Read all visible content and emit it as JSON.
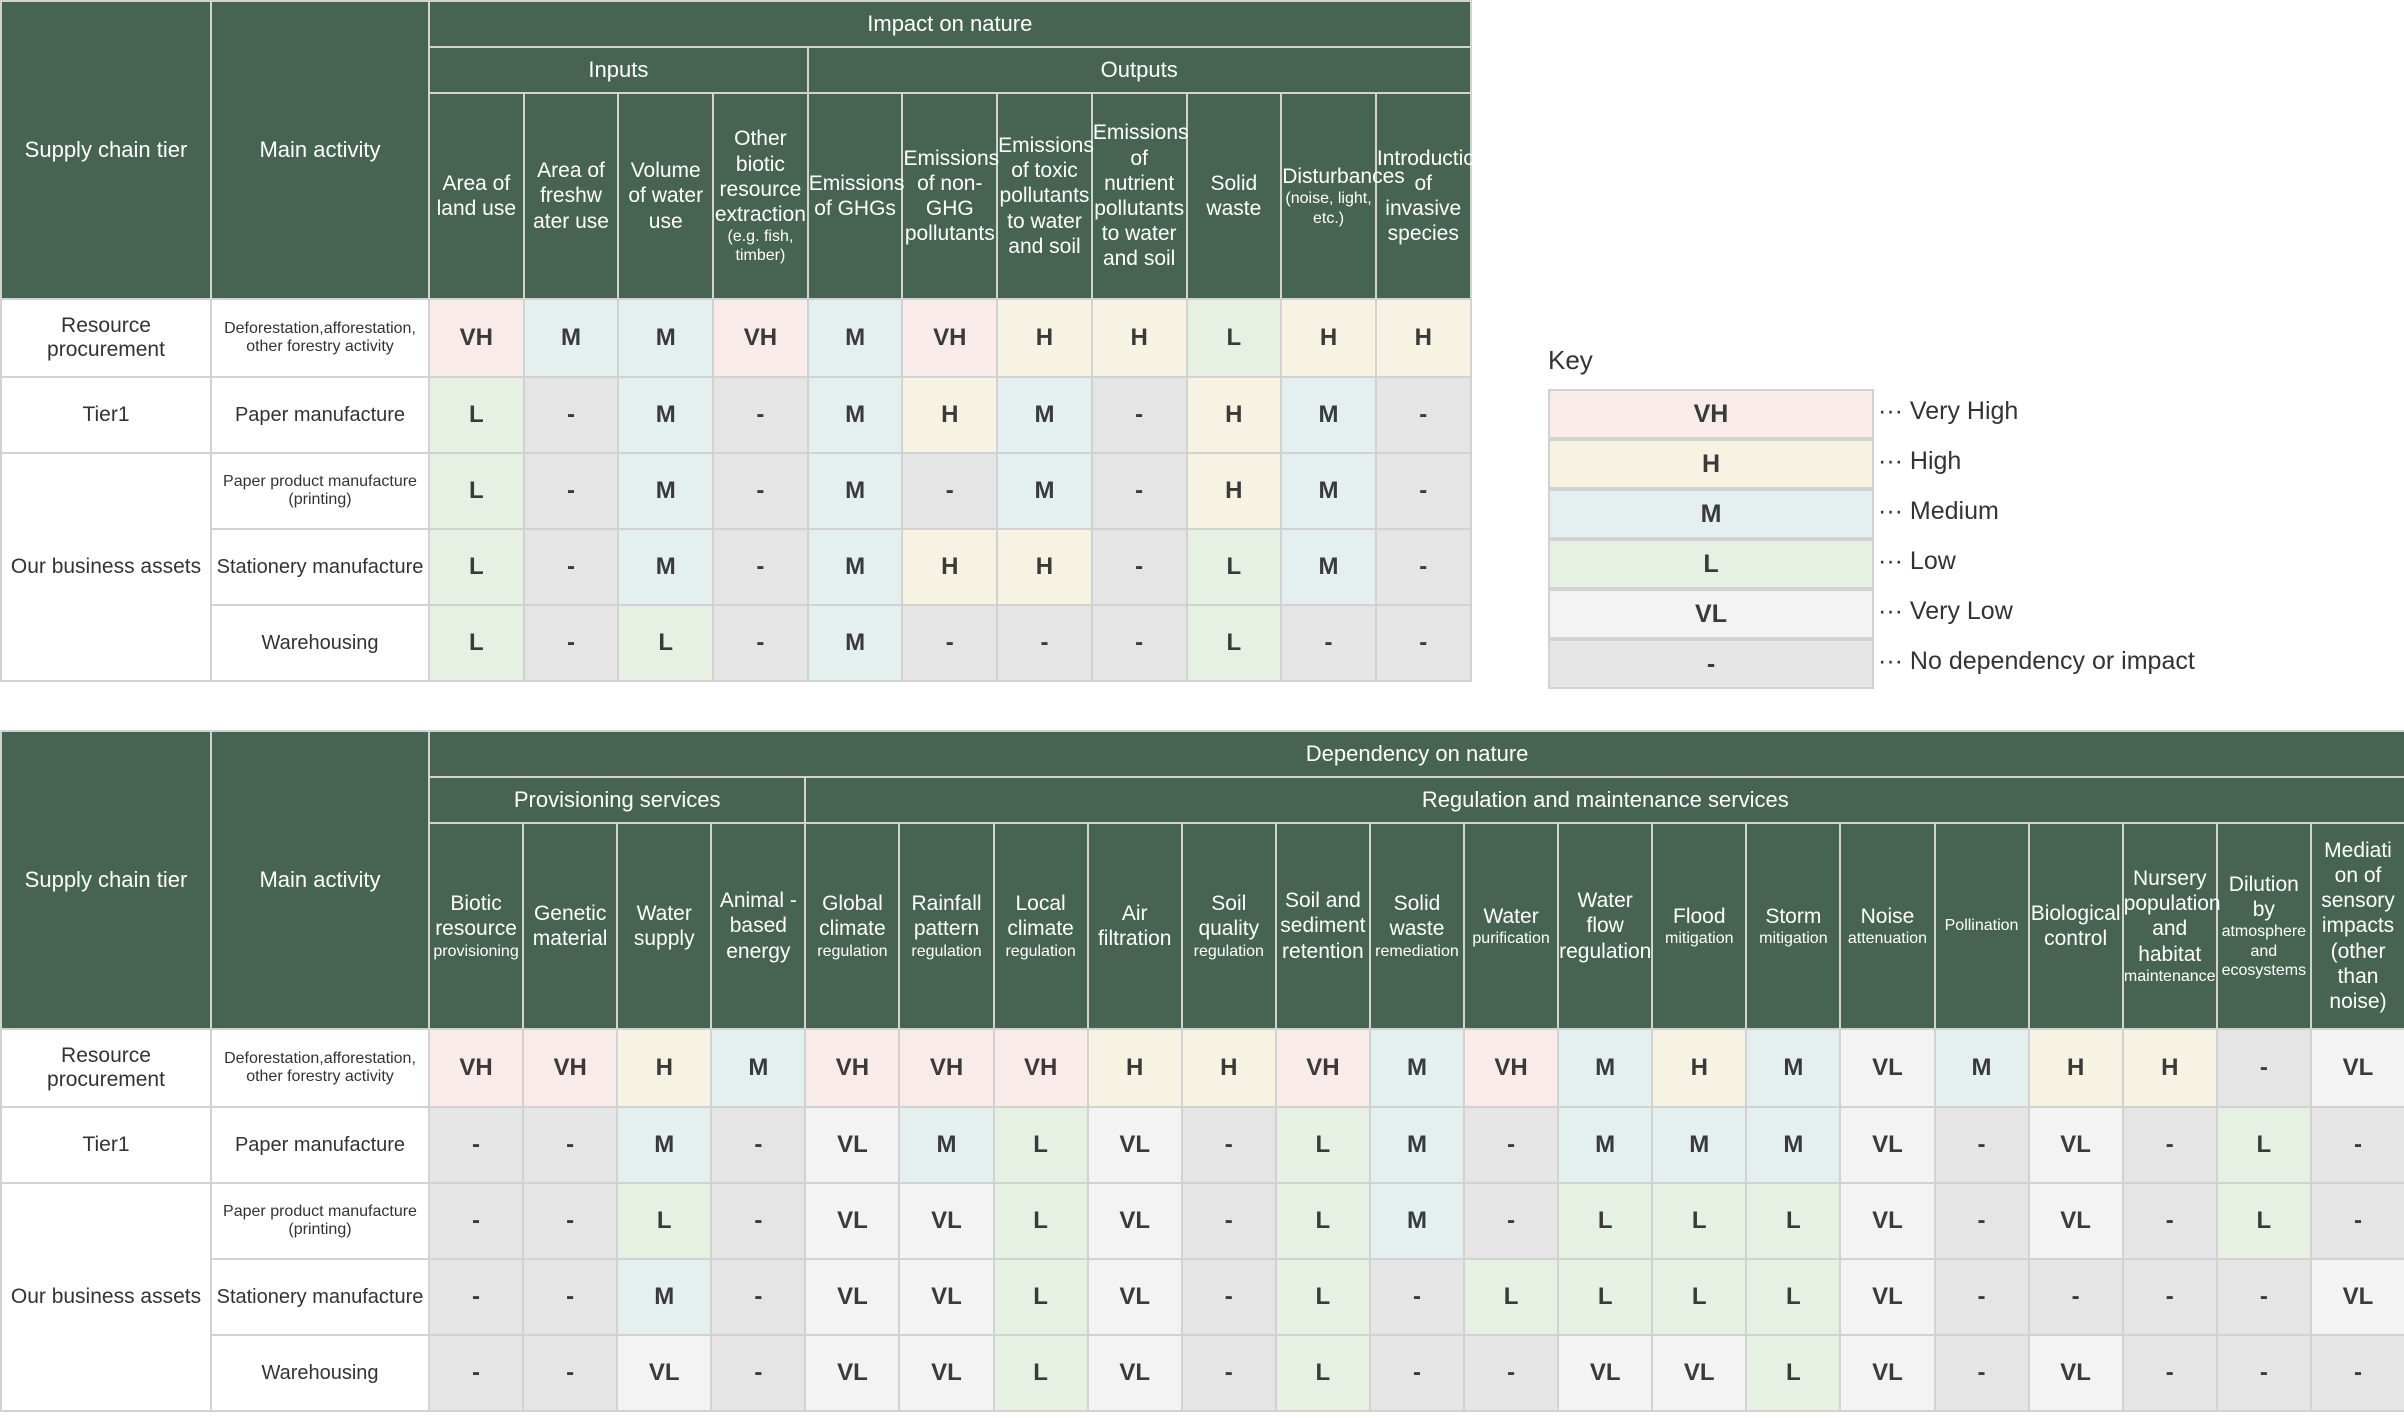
{
  "impact": {
    "tier_header": "Supply chain tier",
    "activity_header": "Main activity",
    "title": "Impact on nature",
    "groups": [
      "Inputs",
      "Outputs"
    ],
    "columns": [
      {
        "main": "Area of land use",
        "sub": ""
      },
      {
        "main": "Area of freshw ater use",
        "sub": ""
      },
      {
        "main": "Volume of water use",
        "sub": ""
      },
      {
        "main": "Other biotic resource extraction",
        "sub": "(e.g. fish, timber)"
      },
      {
        "main": "Emissions of GHGs",
        "sub": ""
      },
      {
        "main": "Emissions of non-GHG pollutants",
        "sub": ""
      },
      {
        "main": "Emissions of toxic pollutants to water and soil",
        "sub": ""
      },
      {
        "main": "Emissions of nutrient pollutants to water and soil",
        "sub": ""
      },
      {
        "main": "Solid waste",
        "sub": ""
      },
      {
        "main": "Disturbances",
        "sub": "(noise, light, etc.)"
      },
      {
        "main": "Introduction of invasive species",
        "sub": ""
      }
    ],
    "rows": [
      {
        "tier": "Resource procurement",
        "activity": "Deforestation,afforestation, other forestry activity",
        "values": [
          "VH",
          "M",
          "M",
          "VH",
          "M",
          "VH",
          "H",
          "H",
          "L",
          "H",
          "H"
        ]
      },
      {
        "tier": "Tier1",
        "activity": "Paper manufacture",
        "values": [
          "L",
          "-",
          "M",
          "-",
          "M",
          "H",
          "M",
          "-",
          "H",
          "M",
          "-"
        ]
      },
      {
        "tier": "Our business assets",
        "activity": "Paper product manufacture (printing)",
        "values": [
          "L",
          "-",
          "M",
          "-",
          "M",
          "-",
          "M",
          "-",
          "H",
          "M",
          "-"
        ]
      },
      {
        "tier": "",
        "activity": "Stationery manufacture",
        "values": [
          "L",
          "-",
          "M",
          "-",
          "M",
          "H",
          "H",
          "-",
          "L",
          "M",
          "-"
        ]
      },
      {
        "tier": "",
        "activity": "Warehousing",
        "values": [
          "L",
          "-",
          "L",
          "-",
          "M",
          "-",
          "-",
          "-",
          "L",
          "-",
          "-"
        ]
      }
    ]
  },
  "dependency": {
    "tier_header": "Supply chain tier",
    "activity_header": "Main activity",
    "title": "Dependency on nature",
    "groups": [
      "Provisioning services",
      "Regulation and maintenance services"
    ],
    "columns": [
      {
        "main": "Biotic resource",
        "sub": "provisioning"
      },
      {
        "main": "Genetic material",
        "sub": ""
      },
      {
        "main": "Water supply",
        "sub": ""
      },
      {
        "main": "Animal -based energy",
        "sub": ""
      },
      {
        "main": "Global climate",
        "sub": "regulation"
      },
      {
        "main": "Rainfall pattern",
        "sub": "regulation"
      },
      {
        "main": "Local climate",
        "sub": "regulation"
      },
      {
        "main": "Air filtration",
        "sub": ""
      },
      {
        "main": "Soil quality",
        "sub": "regulation"
      },
      {
        "main": "Soil and sediment retention",
        "sub": ""
      },
      {
        "main": "Solid waste",
        "sub": "remediation"
      },
      {
        "main": "Water",
        "sub": "purification"
      },
      {
        "main": "Water flow regulation",
        "sub": ""
      },
      {
        "main": "Flood",
        "sub": "mitigation"
      },
      {
        "main": "Storm",
        "sub": "mitigation"
      },
      {
        "main": "Noise",
        "sub": "attenuation"
      },
      {
        "main": "",
        "sub": "Pollination"
      },
      {
        "main": "Biological control",
        "sub": ""
      },
      {
        "main": "Nursery population and habitat",
        "sub": "maintenance"
      },
      {
        "main": "Dilution by",
        "sub": "atmosphere and ecosystems"
      },
      {
        "main": "Mediati on of sensory impacts (other than noise)",
        "sub": ""
      }
    ],
    "rows": [
      {
        "tier": "Resource procurement",
        "activity": "Deforestation,afforestation, other forestry activity",
        "values": [
          "VH",
          "VH",
          "H",
          "M",
          "VH",
          "VH",
          "VH",
          "H",
          "H",
          "VH",
          "M",
          "VH",
          "M",
          "H",
          "M",
          "VL",
          "M",
          "H",
          "H",
          "-",
          "VL"
        ]
      },
      {
        "tier": "Tier1",
        "activity": "Paper manufacture",
        "values": [
          "-",
          "-",
          "M",
          "-",
          "VL",
          "M",
          "L",
          "VL",
          "-",
          "L",
          "M",
          "-",
          "M",
          "M",
          "M",
          "VL",
          "-",
          "VL",
          "-",
          "L",
          "-"
        ]
      },
      {
        "tier": "Our business assets",
        "activity": "Paper product manufacture (printing)",
        "values": [
          "-",
          "-",
          "L",
          "-",
          "VL",
          "VL",
          "L",
          "VL",
          "-",
          "L",
          "M",
          "-",
          "L",
          "L",
          "L",
          "VL",
          "-",
          "VL",
          "-",
          "L",
          "-"
        ]
      },
      {
        "tier": "",
        "activity": "Stationery manufacture",
        "values": [
          "-",
          "-",
          "M",
          "-",
          "VL",
          "VL",
          "L",
          "VL",
          "-",
          "L",
          "-",
          "L",
          "L",
          "L",
          "L",
          "VL",
          "-",
          "-",
          "-",
          "-",
          "VL"
        ]
      },
      {
        "tier": "",
        "activity": "Warehousing",
        "values": [
          "-",
          "-",
          "VL",
          "-",
          "VL",
          "VL",
          "L",
          "VL",
          "-",
          "L",
          "-",
          "-",
          "VL",
          "VL",
          "L",
          "VL",
          "-",
          "VL",
          "-",
          "-",
          "-"
        ]
      }
    ]
  },
  "key": {
    "title": "Key",
    "items": [
      {
        "code": "VH",
        "label": "··· Very High"
      },
      {
        "code": "H",
        "label": "··· High"
      },
      {
        "code": "M",
        "label": "··· Medium"
      },
      {
        "code": "L",
        "label": "··· Low"
      },
      {
        "code": "VL",
        "label": "··· Very Low"
      },
      {
        "code": "-",
        "label": "··· No dependency or impact"
      }
    ]
  },
  "colors": {
    "header": "#476453",
    "VH": "#f8ebea",
    "H": "#f6f3e2",
    "M": "#e4f0f0",
    "L": "#e6f0e3",
    "VL": "#f3f3f3",
    "none": "#e5e5e5"
  }
}
